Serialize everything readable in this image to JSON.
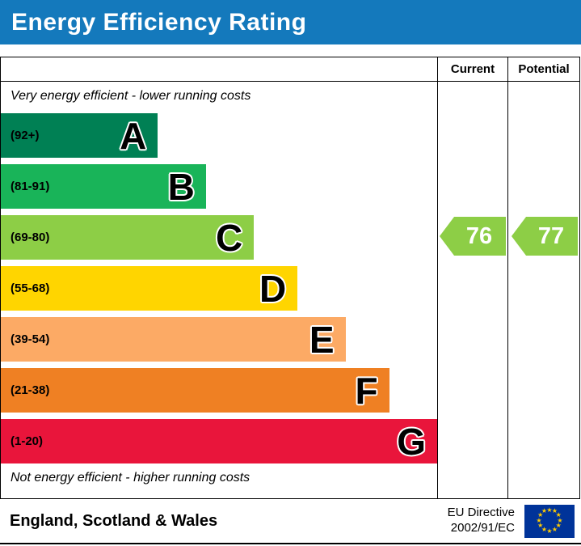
{
  "header": {
    "title": "Energy Efficiency Rating",
    "bg_color": "#1479bc",
    "text_color": "#ffffff"
  },
  "columns": {
    "current": "Current",
    "potential": "Potential"
  },
  "captions": {
    "top": "Very energy efficient - lower running costs",
    "bottom": "Not energy efficient - higher running costs"
  },
  "chart_data": {
    "type": "bar",
    "title": "Energy Efficiency Rating",
    "bands": [
      {
        "letter": "A",
        "range_label": "(92+)",
        "range": [
          92,
          100
        ],
        "color": "#008054",
        "width_pct": 36
      },
      {
        "letter": "B",
        "range_label": "(81-91)",
        "range": [
          81,
          91
        ],
        "color": "#19b459",
        "width_pct": 47
      },
      {
        "letter": "C",
        "range_label": "(69-80)",
        "range": [
          69,
          80
        ],
        "color": "#8dce46",
        "width_pct": 58
      },
      {
        "letter": "D",
        "range_label": "(55-68)",
        "range": [
          55,
          68
        ],
        "color": "#ffd500",
        "width_pct": 68
      },
      {
        "letter": "E",
        "range_label": "(39-54)",
        "range": [
          39,
          54
        ],
        "color": "#fcaa65",
        "width_pct": 79
      },
      {
        "letter": "F",
        "range_label": "(21-38)",
        "range": [
          21,
          38
        ],
        "color": "#ef8023",
        "width_pct": 89
      },
      {
        "letter": "G",
        "range_label": "(1-20)",
        "range": [
          1,
          20
        ],
        "color": "#e9153b",
        "width_pct": 100
      }
    ],
    "current": {
      "value": "76",
      "band": "C",
      "color": "#8dce46"
    },
    "potential": {
      "value": "77",
      "band": "C",
      "color": "#8dce46"
    }
  },
  "footer": {
    "region": "England, Scotland & Wales",
    "directive_line1": "EU Directive",
    "directive_line2": "2002/91/EC",
    "flag": {
      "bg": "#003399",
      "star_color": "#ffcc00"
    }
  }
}
